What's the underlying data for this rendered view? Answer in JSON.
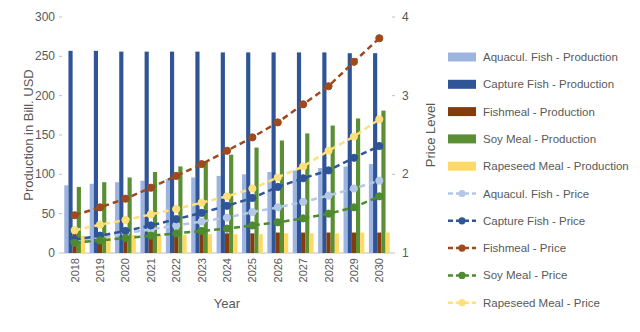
{
  "chart_data": {
    "type": "bar",
    "xlabel": "Year",
    "ylabel": "Production in Bill. USD",
    "y2label": "Price Level",
    "categories": [
      "2018",
      "2019",
      "2020",
      "2021",
      "2022",
      "2023",
      "2024",
      "2025",
      "2026",
      "2027",
      "2028",
      "2029",
      "2030"
    ],
    "ylim": [
      0,
      300
    ],
    "yticks": [
      0,
      50,
      100,
      150,
      200,
      250,
      300
    ],
    "y2lim": [
      1,
      4
    ],
    "y2ticks": [
      1,
      2,
      3,
      4
    ],
    "grid": false,
    "legend": "right",
    "series": [
      {
        "name": "Aquacul. Fish - Production",
        "type": "bar",
        "color": "#9db3e0",
        "values": [
          86,
          88,
          90,
          92,
          94,
          96,
          98,
          100,
          103,
          105,
          108,
          110,
          113
        ]
      },
      {
        "name": "Capture Fish - Production",
        "type": "bar",
        "color": "#2f5597",
        "values": [
          257,
          257,
          256,
          256,
          256,
          256,
          255,
          255,
          255,
          255,
          255,
          254,
          254
        ]
      },
      {
        "name": "Fishmeal - Production",
        "type": "bar",
        "color": "#843c0c",
        "values": [
          24,
          24,
          24,
          25,
          25,
          25,
          25,
          25,
          26,
          26,
          26,
          26,
          26
        ]
      },
      {
        "name": "Soy Meal - Production",
        "type": "bar",
        "color": "#5b8f35",
        "values": [
          84,
          90,
          96,
          103,
          110,
          117,
          125,
          134,
          143,
          152,
          162,
          171,
          181
        ]
      },
      {
        "name": "Rapeseed Meal - Production",
        "type": "bar",
        "color": "#ffd966",
        "values": [
          22,
          22,
          23,
          23,
          23,
          24,
          24,
          24,
          25,
          25,
          25,
          26,
          26
        ]
      },
      {
        "name": "Aquacul. Fish - Price",
        "type": "line",
        "axis": "y2",
        "color": "#b4c7e7",
        "line_style": "dashed",
        "marker": "circle",
        "values": [
          1.15,
          1.2,
          1.25,
          1.3,
          1.35,
          1.4,
          1.45,
          1.52,
          1.58,
          1.65,
          1.73,
          1.82,
          1.92
        ]
      },
      {
        "name": "Capture Fish - Price",
        "type": "line",
        "axis": "y2",
        "color": "#2f5597",
        "line_style": "dashed",
        "marker": "circle",
        "values": [
          1.17,
          1.22,
          1.28,
          1.35,
          1.43,
          1.51,
          1.6,
          1.7,
          1.84,
          1.95,
          2.05,
          2.21,
          2.36
        ]
      },
      {
        "name": "Fishmeal - Price",
        "type": "line",
        "axis": "y2",
        "color": "#9e4a1e",
        "line_style": "dashed",
        "marker": "circle",
        "values": [
          1.48,
          1.58,
          1.69,
          1.83,
          1.98,
          2.13,
          2.3,
          2.47,
          2.66,
          2.89,
          3.12,
          3.43,
          3.73
        ]
      },
      {
        "name": "Soy Meal - Price",
        "type": "line",
        "axis": "y2",
        "color": "#4e8a2e",
        "line_style": "dashed",
        "marker": "circle",
        "values": [
          1.13,
          1.16,
          1.19,
          1.22,
          1.25,
          1.28,
          1.31,
          1.35,
          1.39,
          1.44,
          1.5,
          1.58,
          1.72
        ]
      },
      {
        "name": "Rapeseed Meal - Price",
        "type": "line",
        "axis": "y2",
        "color": "#ffe07a",
        "line_style": "dashed",
        "marker": "circle",
        "values": [
          1.29,
          1.36,
          1.42,
          1.49,
          1.56,
          1.64,
          1.72,
          1.82,
          1.96,
          2.1,
          2.3,
          2.48,
          2.7
        ]
      }
    ]
  }
}
